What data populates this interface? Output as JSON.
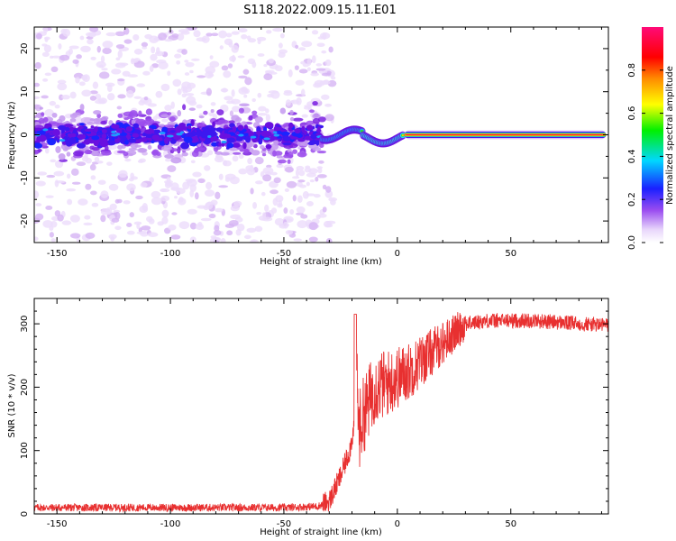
{
  "title": "S118.2022.009.15.11.E01",
  "colors": {
    "snr_line": "#e83030",
    "spectrogram_low": "#d9b8f2",
    "spectrogram_mid": "#7a1ee0",
    "spectrogram_high": "#1a24ff",
    "carrier": "#ff1e40"
  },
  "chart_data": [
    {
      "type": "heatmap",
      "xlabel": "Height of straight line (km)",
      "ylabel": "Frequency (Hz)",
      "xlim": [
        -160,
        93
      ],
      "ylim": [
        -25,
        25
      ],
      "x_ticks": [
        -150,
        -100,
        -50,
        0,
        50
      ],
      "y_ticks": [
        20,
        10,
        0,
        -10,
        -20
      ],
      "colorbar": {
        "label": "Normalized spectral amplitude",
        "range": [
          0.0,
          1.0
        ],
        "ticks": [
          "0.0",
          "0.2",
          "0.4",
          "0.6",
          "0.8"
        ],
        "colormap": "rainbow (white → violet → blue → cyan → green → yellow → red → magenta)"
      },
      "features": {
        "noise_region_x": [
          -160,
          -33
        ],
        "noise_band_hz": [
          -10,
          10
        ],
        "carrier_onset_km": -33,
        "carrier_frequency_hz": 0,
        "carrier_stable_from_km": 3,
        "carrier_end_km": 93
      }
    },
    {
      "type": "line",
      "xlabel": "Height of straight line (km)",
      "ylabel": "SNR (10 * v/v)",
      "xlim": [
        -160,
        93
      ],
      "ylim": [
        0,
        340
      ],
      "x_ticks": [
        -150,
        -100,
        -50,
        0,
        50
      ],
      "y_ticks": [
        0,
        100,
        200,
        300
      ],
      "series": [
        {
          "x": [
            -160,
            -100,
            -50,
            -35,
            -30,
            -25,
            -21,
            -19,
            -18.5,
            -17,
            -15,
            -10,
            -5,
            0,
            5,
            10,
            20,
            30,
            40,
            60,
            80,
            93
          ],
          "values": [
            10,
            10,
            10,
            12,
            20,
            60,
            100,
            140,
            315,
            130,
            155,
            200,
            205,
            215,
            225,
            240,
            270,
            300,
            305,
            305,
            300,
            298
          ]
        }
      ]
    }
  ]
}
